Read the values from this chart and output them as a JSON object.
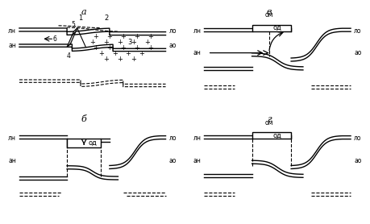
{
  "bg_color": "#ffffff",
  "lc": "#000000",
  "panels": [
    "а",
    "в",
    "б",
    "г"
  ]
}
